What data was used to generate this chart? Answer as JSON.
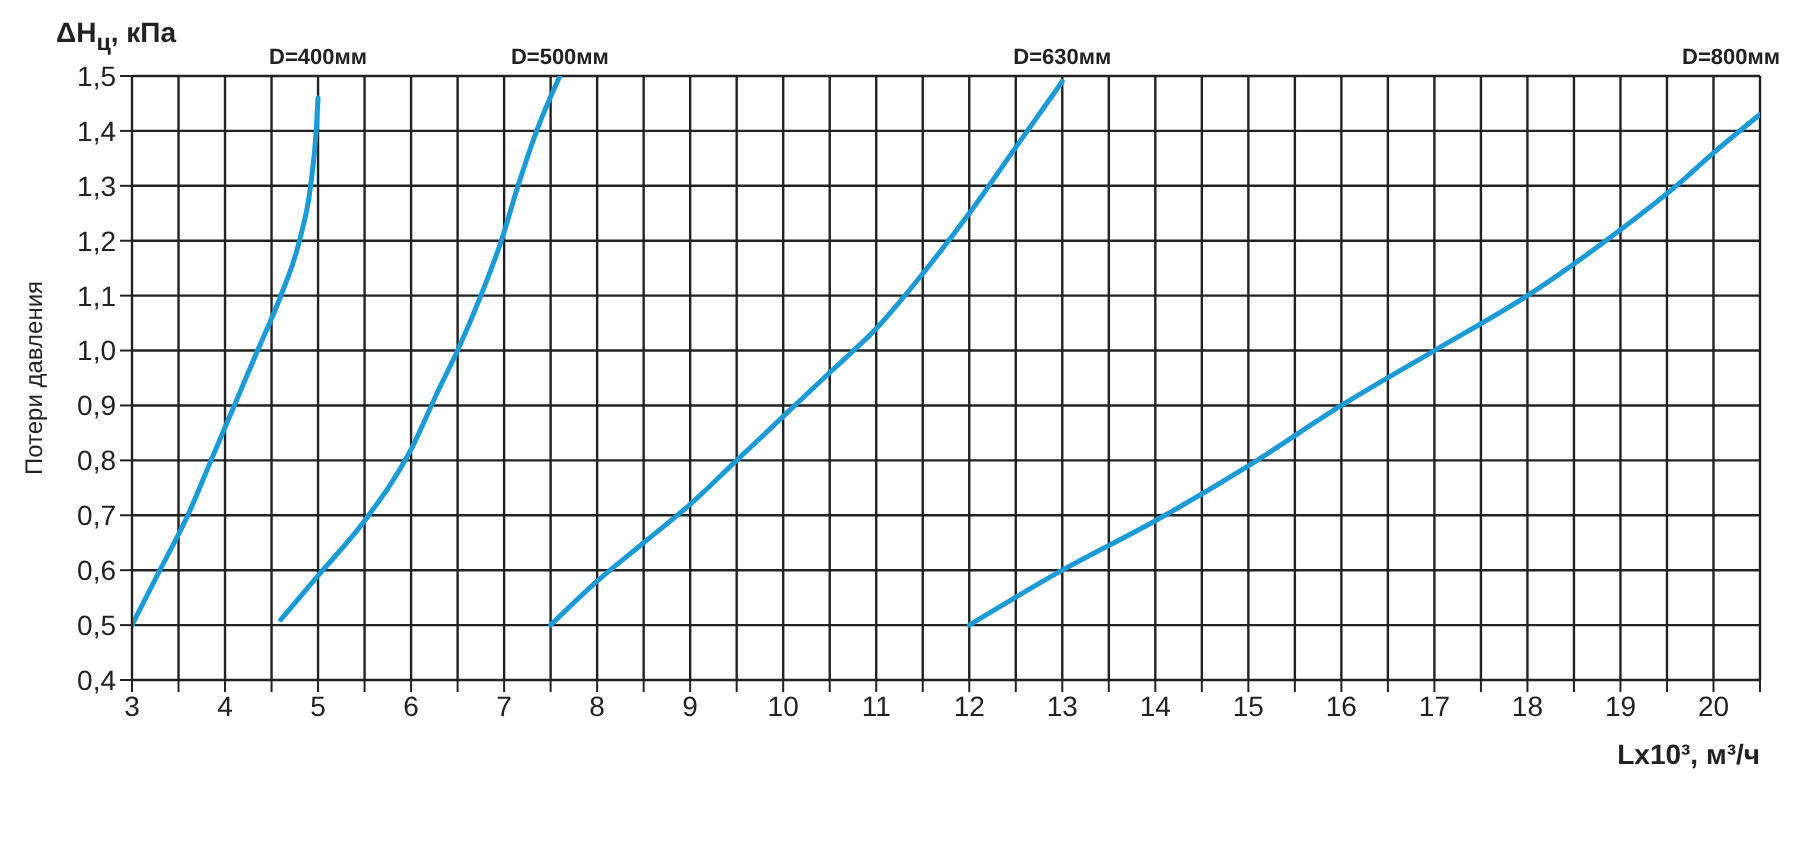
{
  "chart_data": {
    "type": "line",
    "xlabel": "Lx10³, м³/ч",
    "ylabel": "Потери давления",
    "annotations": [
      "ΔH$_{ц}$, кПа"
    ],
    "xlim": [
      3,
      20.5
    ],
    "xticks": [
      3,
      {
        "value": 3.5,
        "label": null
      },
      4,
      {
        "value": 4.5,
        "label": null
      },
      5,
      {
        "value": 5.5,
        "label": null
      },
      6,
      {
        "value": 6.5,
        "label": null
      },
      7,
      {
        "value": 7.5,
        "label": null
      },
      8,
      {
        "value": 8.5,
        "label": null
      },
      9,
      {
        "value": 9.5,
        "label": null
      },
      10,
      {
        "value": 10.5,
        "label": null
      },
      11,
      {
        "value": 11.5,
        "label": null
      },
      12,
      {
        "value": 12.5,
        "label": null
      },
      13,
      {
        "value": 13.5,
        "label": null
      },
      14,
      {
        "value": 14.5,
        "label": null
      },
      15,
      {
        "value": 15.5,
        "label": null
      },
      16,
      {
        "value": 16.5,
        "label": null
      },
      17,
      {
        "value": 17.5,
        "label": null
      },
      18,
      {
        "value": 18.5,
        "label": null
      },
      19,
      {
        "value": 19.5,
        "label": null
      },
      20,
      {
        "value": 20.5,
        "label": null
      }
    ],
    "ylim": [
      0.4,
      1.5
    ],
    "yticks": [
      {
        "value": 0.4,
        "label": "0,4"
      },
      {
        "value": 0.5,
        "label": "0,5"
      },
      {
        "value": 0.6,
        "label": "0,6"
      },
      {
        "value": 0.7,
        "label": "0,7"
      },
      {
        "value": 0.8,
        "label": "0,8"
      },
      {
        "value": 0.9,
        "label": "0,9"
      },
      {
        "value": 1.0,
        "label": "1,0"
      },
      {
        "value": 1.1,
        "label": "1,1"
      },
      {
        "value": 1.2,
        "label": "1,2"
      },
      {
        "value": 1.3,
        "label": "1,3"
      },
      {
        "value": 1.4,
        "label": "1,4"
      },
      {
        "value": 1.5,
        "label": "1,5"
      }
    ],
    "grid": true,
    "marker": "none",
    "line_style": "solid",
    "series": [
      {
        "name": "D=400мм",
        "color": "#1b9ad6",
        "x": [
          3,
          3.3,
          3.6,
          3.85,
          4.1,
          4.35,
          4.6,
          4.8,
          4.92,
          4.98,
          5.0
        ],
        "values": [
          0.5,
          0.6,
          0.7,
          0.8,
          0.9,
          1.0,
          1.1,
          1.2,
          1.3,
          1.4,
          1.46
        ]
      },
      {
        "name": "D=500мм",
        "color": "#1b9ad6",
        "x": [
          4.6,
          5.0,
          5.5,
          6.0,
          6.3,
          6.5,
          6.75,
          6.97,
          7.15,
          7.35,
          7.6
        ],
        "values": [
          0.51,
          0.59,
          0.69,
          0.82,
          0.93,
          1.0,
          1.1,
          1.2,
          1.3,
          1.4,
          1.5
        ]
      },
      {
        "name": "D=630мм",
        "color": "#1b9ad6",
        "x": [
          7.5,
          8,
          8.5,
          9,
          9.5,
          10,
          10.5,
          11,
          11.5,
          12,
          12.5,
          13
        ],
        "values": [
          0.5,
          0.58,
          0.65,
          0.72,
          0.8,
          0.88,
          0.96,
          1.04,
          1.14,
          1.25,
          1.37,
          1.49
        ]
      },
      {
        "name": "D=800мм",
        "color": "#1b9ad6",
        "x": [
          12,
          13,
          14,
          15,
          16,
          17,
          18,
          19,
          19.6,
          20,
          20.5
        ],
        "values": [
          0.5,
          0.6,
          0.69,
          0.79,
          0.9,
          1.0,
          1.1,
          1.22,
          1.3,
          1.36,
          1.43
        ]
      }
    ]
  }
}
